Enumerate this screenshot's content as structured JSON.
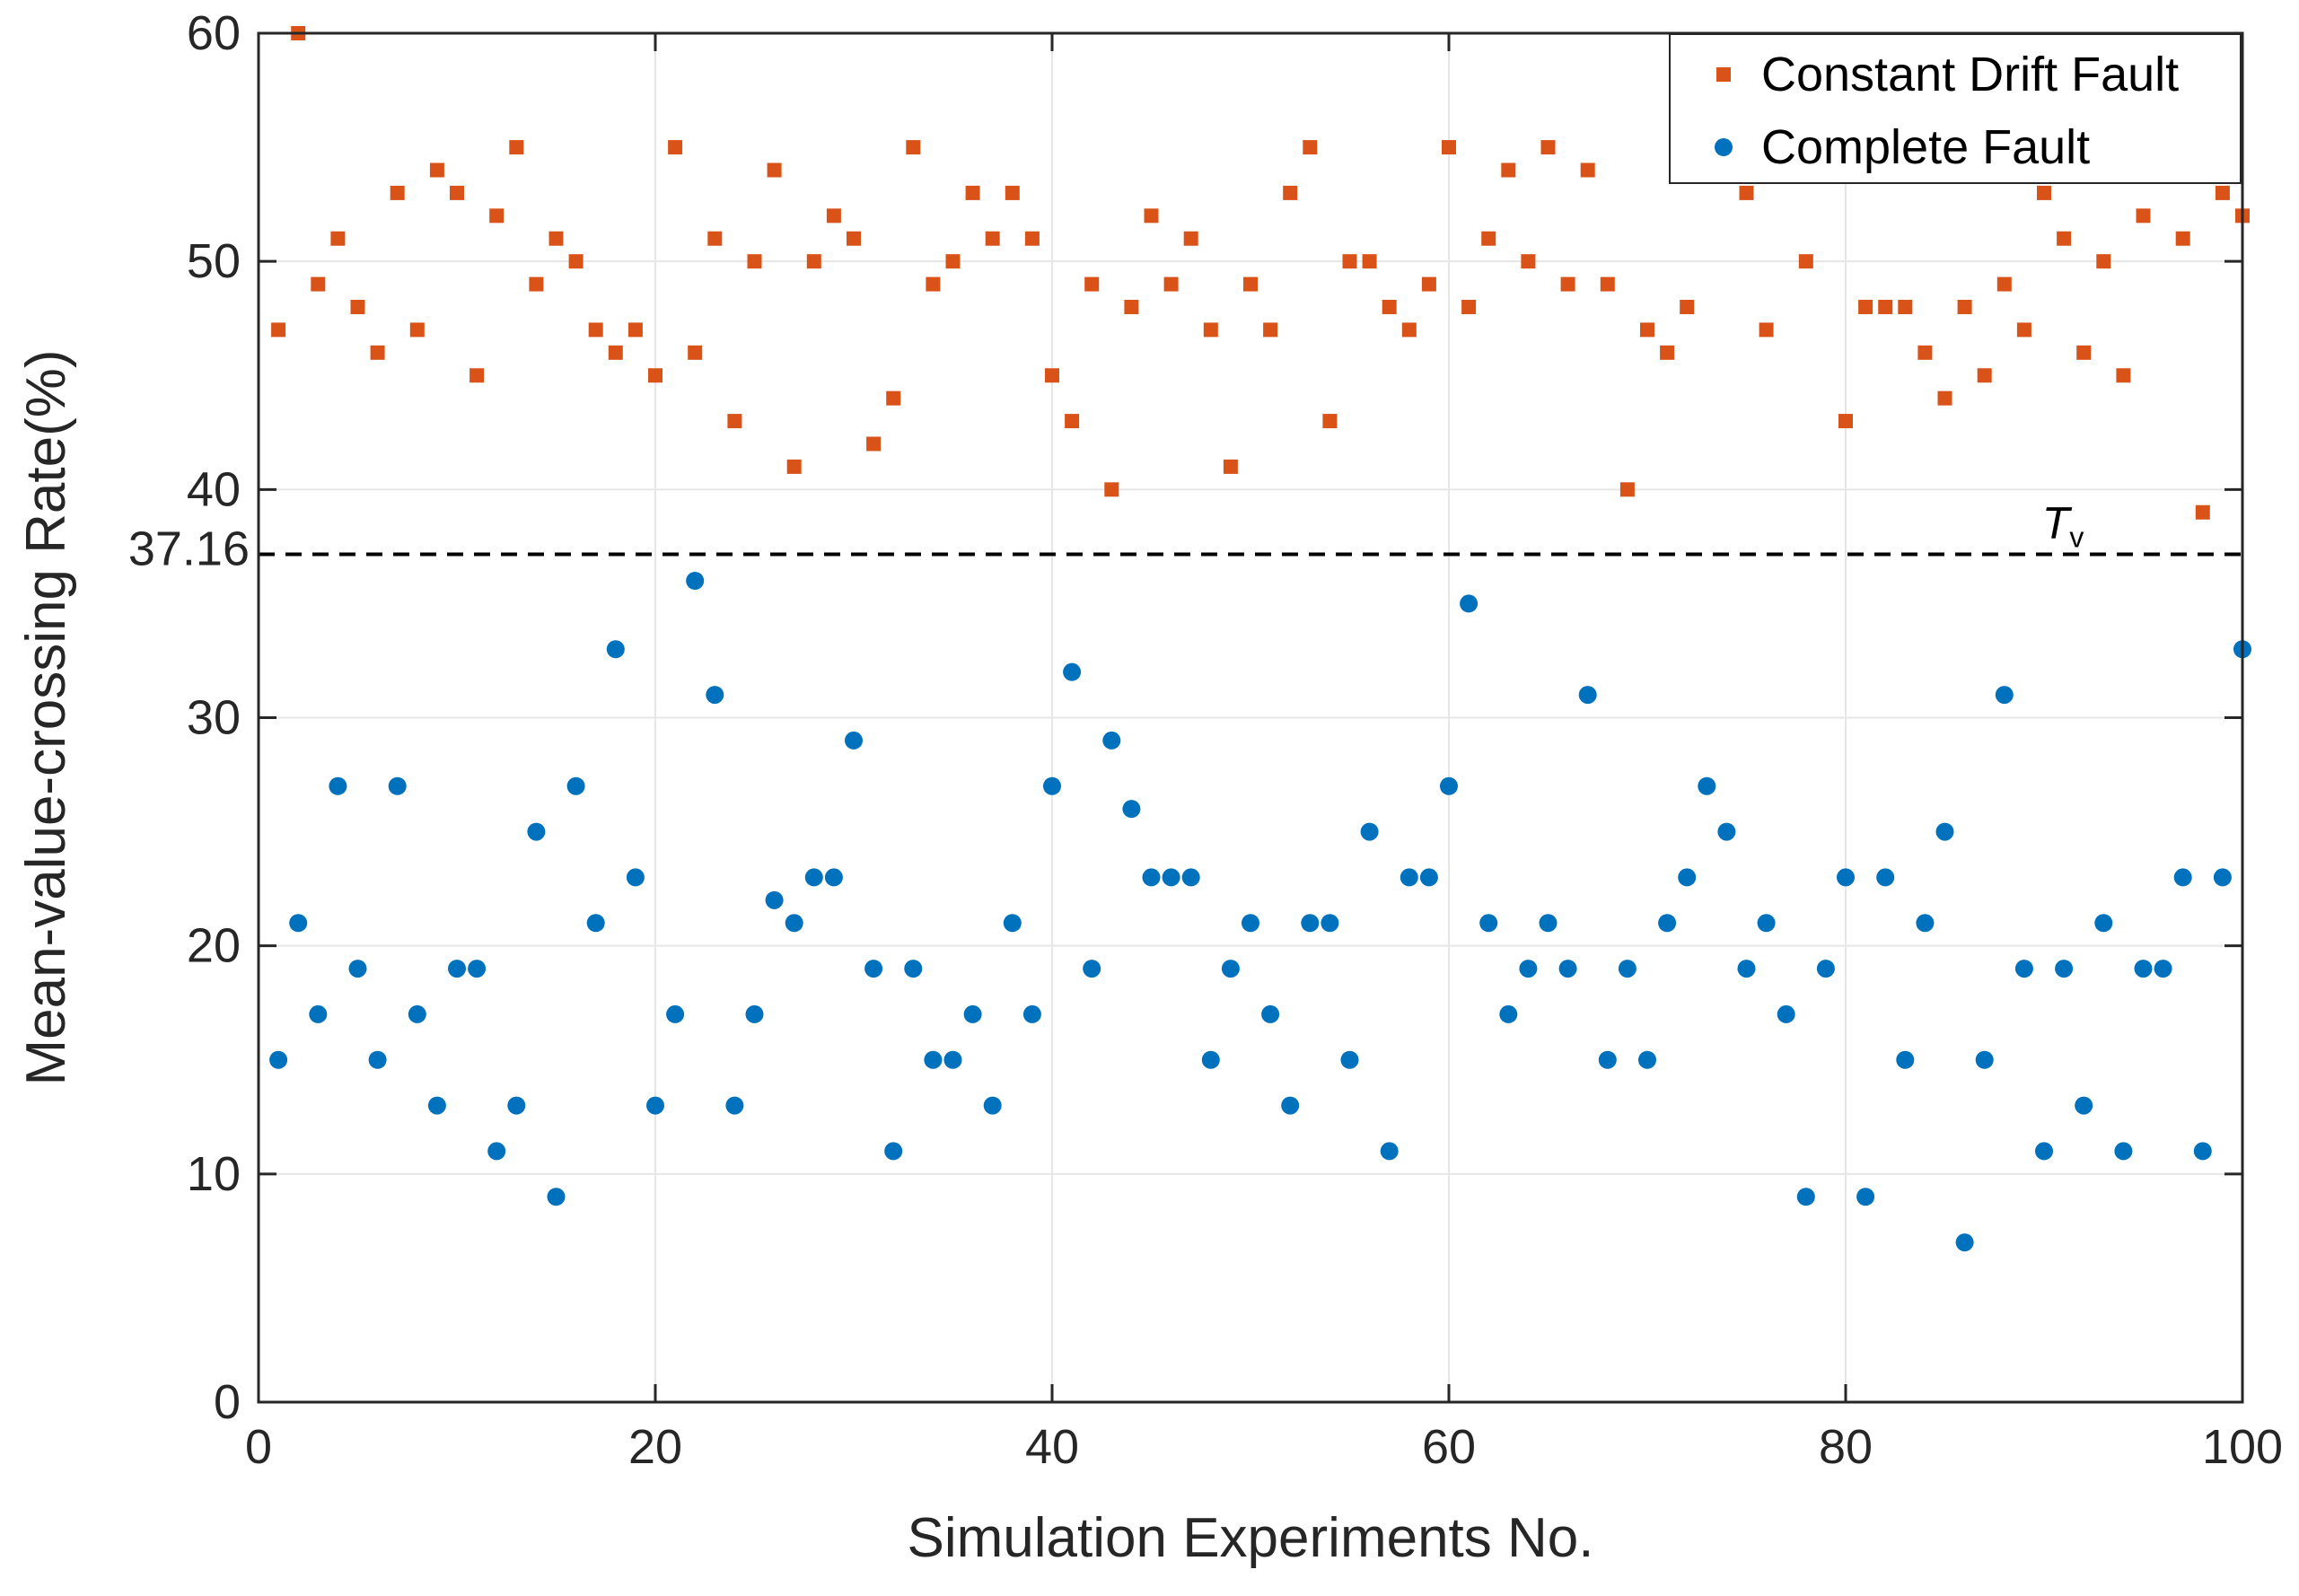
{
  "chart_data": {
    "type": "scatter",
    "title": "",
    "xlabel": "Simulation Experiments No.",
    "ylabel": "Mean-value-crossing Rate(%)",
    "xlim": [
      0,
      100
    ],
    "ylim": [
      0,
      60
    ],
    "xticks": [
      "0",
      "20",
      "40",
      "60",
      "80",
      "100"
    ],
    "yticks": [
      "0",
      "10",
      "20",
      "30",
      "40",
      "50",
      "60"
    ],
    "grid": true,
    "legend_position": "top-right",
    "threshold": {
      "value": 37.16,
      "label": "37.16",
      "annotation_main": "T",
      "annotation_sub": "v",
      "style": "dashed",
      "color": "#000000"
    },
    "series": [
      {
        "name": "Constant Drift Fault",
        "marker": "square",
        "color": "#D95319",
        "x": [
          1,
          2,
          3,
          4,
          5,
          6,
          7,
          8,
          9,
          10,
          11,
          12,
          13,
          14,
          15,
          16,
          17,
          18,
          19,
          20,
          21,
          22,
          23,
          24,
          25,
          26,
          27,
          28,
          29,
          30,
          31,
          32,
          33,
          34,
          35,
          36,
          37,
          38,
          39,
          40,
          41,
          42,
          43,
          44,
          45,
          46,
          47,
          48,
          49,
          50,
          51,
          52,
          53,
          54,
          55,
          56,
          57,
          58,
          59,
          60,
          61,
          62,
          63,
          64,
          65,
          66,
          67,
          68,
          69,
          70,
          71,
          72,
          75,
          76,
          78,
          80,
          81,
          82,
          83,
          84,
          85,
          86,
          87,
          88,
          89,
          90,
          91,
          92,
          93,
          94,
          95,
          97,
          98,
          99,
          100
        ],
        "values": [
          47,
          60,
          49,
          51,
          48,
          46,
          53,
          47,
          54,
          53,
          45,
          52,
          55,
          49,
          51,
          50,
          47,
          46,
          47,
          45,
          55,
          46,
          51,
          43,
          50,
          54,
          41,
          50,
          52,
          51,
          42,
          44,
          55,
          49,
          50,
          53,
          51,
          53,
          51,
          45,
          43,
          49,
          40,
          48,
          52,
          49,
          51,
          47,
          41,
          49,
          47,
          53,
          55,
          43,
          50,
          50,
          48,
          47,
          49,
          55,
          48,
          51,
          54,
          50,
          55,
          49,
          54,
          49,
          40,
          47,
          46,
          48,
          53,
          47,
          50,
          43,
          48,
          48,
          48,
          46,
          44,
          48,
          45,
          49,
          47,
          53,
          51,
          46,
          50,
          45,
          52,
          51,
          39,
          53,
          52
        ]
      },
      {
        "name": "Complete Fault",
        "marker": "circle",
        "color": "#0072BD",
        "x": [
          1,
          2,
          3,
          4,
          5,
          6,
          7,
          8,
          9,
          10,
          11,
          12,
          13,
          14,
          15,
          16,
          17,
          18,
          19,
          20,
          21,
          22,
          23,
          24,
          25,
          26,
          27,
          28,
          29,
          30,
          31,
          32,
          33,
          34,
          35,
          36,
          37,
          38,
          39,
          40,
          41,
          42,
          43,
          44,
          45,
          46,
          47,
          48,
          49,
          50,
          51,
          52,
          53,
          54,
          55,
          56,
          57,
          58,
          59,
          60,
          61,
          62,
          63,
          64,
          65,
          66,
          67,
          68,
          69,
          70,
          71,
          72,
          73,
          74,
          75,
          76,
          77,
          78,
          79,
          80,
          81,
          82,
          83,
          84,
          85,
          86,
          87,
          88,
          89,
          90,
          91,
          92,
          93,
          94,
          95,
          96,
          97,
          98,
          99,
          100
        ],
        "values": [
          15,
          21,
          17,
          27,
          19,
          15,
          27,
          17,
          13,
          19,
          19,
          11,
          13,
          25,
          9,
          27,
          21,
          33,
          23,
          13,
          17,
          36,
          31,
          13,
          17,
          22,
          21,
          23,
          23,
          29,
          19,
          11,
          19,
          15,
          15,
          17,
          13,
          21,
          17,
          27,
          32,
          19,
          29,
          26,
          23,
          23,
          23,
          15,
          19,
          21,
          17,
          13,
          21,
          21,
          15,
          25,
          11,
          23,
          23,
          27,
          35,
          21,
          17,
          19,
          21,
          19,
          31,
          15,
          19,
          15,
          21,
          23,
          27,
          25,
          19,
          21,
          17,
          9,
          19,
          23,
          9,
          23,
          15,
          21,
          25,
          7,
          15,
          31,
          19,
          11,
          19,
          13,
          21,
          11,
          19,
          19,
          23,
          11,
          23,
          33
        ]
      }
    ]
  }
}
